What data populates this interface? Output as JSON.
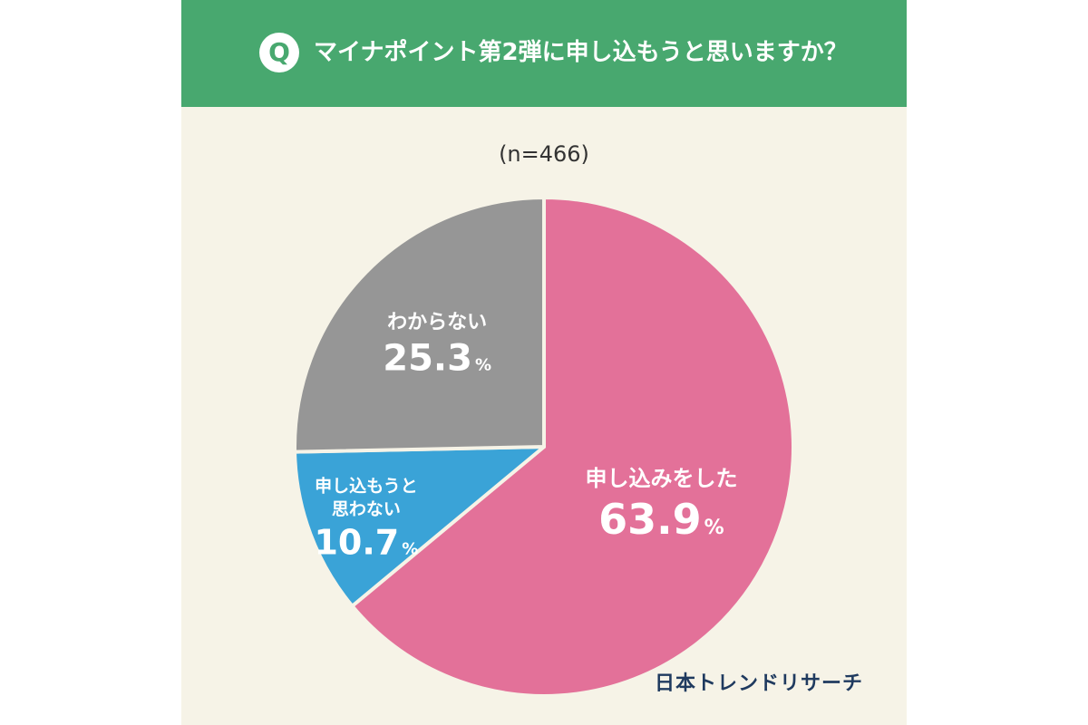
{
  "header": {
    "badge": "Q",
    "question": "マイナポイント第2弾に申し込もうと思いますか？",
    "background_color": "#48a86f"
  },
  "brand": "日本トレンドリサーチ",
  "chart_data": {
    "type": "pie",
    "title": "マイナポイント第2弾に申し込もうと思いますか？",
    "sample_size": "(n=466)",
    "slices": [
      {
        "label": "申し込みをした",
        "value": 63.9,
        "display": "63.9",
        "unit": "%",
        "color": "#e37199"
      },
      {
        "label": "申し込もうと思わない",
        "label_lines": [
          "申し込もうと",
          "思わない"
        ],
        "value": 10.7,
        "display": "10.7",
        "unit": "%",
        "color": "#3aa3d7"
      },
      {
        "label": "わからない",
        "value": 25.3,
        "display": "25.3",
        "unit": "%",
        "color": "#969696"
      }
    ],
    "start_angle": "12 o'clock",
    "direction": "clockwise",
    "slice_border_color": "#f6f3e7"
  }
}
